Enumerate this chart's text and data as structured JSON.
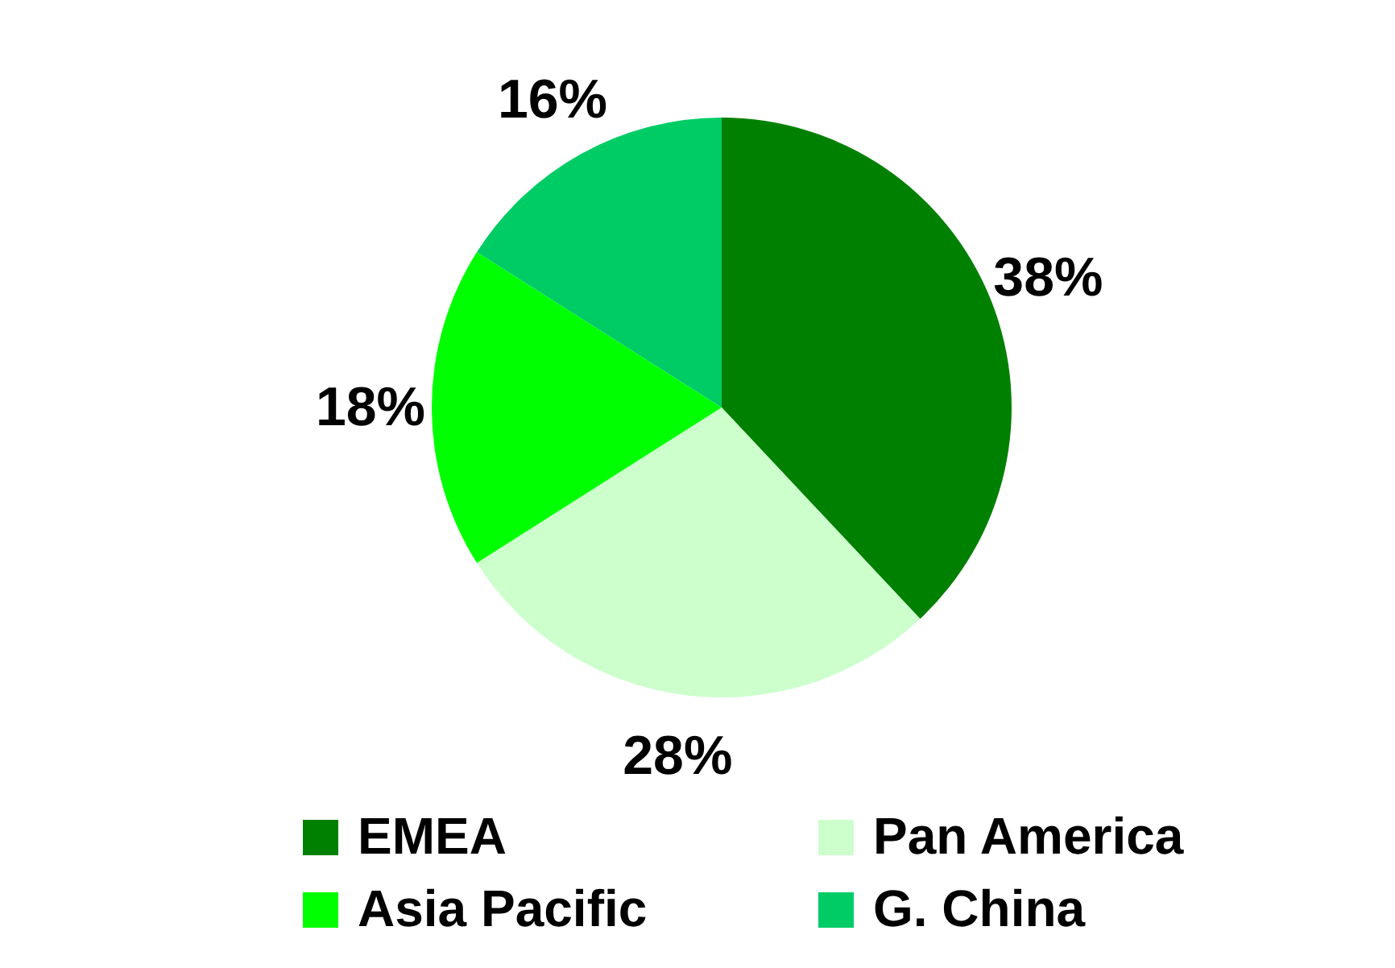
{
  "chart_data": {
    "type": "pie",
    "categories": [
      "EMEA",
      "Pan America",
      "Asia Pacific",
      "G. China"
    ],
    "values": [
      38,
      28,
      18,
      16
    ],
    "colors": [
      "#008000",
      "#ccffcc",
      "#00ff00",
      "#00cc66"
    ],
    "value_labels": [
      "38%",
      "28%",
      "18%",
      "16%"
    ],
    "legend": "bottom"
  }
}
